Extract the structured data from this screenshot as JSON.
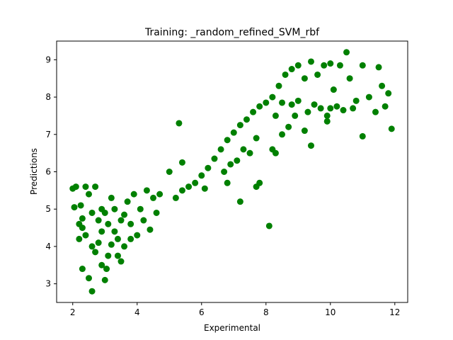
{
  "chart_data": {
    "type": "scatter",
    "title": "Training: _random_refined_SVM_rbf",
    "xlabel": "Experimental",
    "ylabel": "Predictions",
    "xlim": [
      1.5,
      12.4
    ],
    "ylim": [
      2.5,
      9.5
    ],
    "xticks": [
      2,
      4,
      6,
      8,
      10,
      12
    ],
    "yticks": [
      3,
      4,
      5,
      6,
      7,
      8,
      9
    ],
    "grid": false,
    "color": "#008000",
    "series": [
      {
        "values": [
          [
            2.0,
            5.55
          ],
          [
            2.05,
            5.05
          ],
          [
            2.1,
            5.6
          ],
          [
            2.2,
            4.6
          ],
          [
            2.2,
            4.2
          ],
          [
            2.3,
            3.4
          ],
          [
            2.25,
            5.1
          ],
          [
            2.3,
            4.75
          ],
          [
            2.4,
            4.3
          ],
          [
            2.5,
            3.15
          ],
          [
            2.6,
            2.8
          ],
          [
            2.6,
            4.0
          ],
          [
            2.7,
            3.85
          ],
          [
            2.8,
            4.1
          ],
          [
            2.9,
            3.5
          ],
          [
            3.0,
            3.1
          ],
          [
            3.05,
            3.4
          ],
          [
            3.1,
            3.75
          ],
          [
            3.2,
            4.05
          ],
          [
            3.4,
            3.75
          ],
          [
            3.3,
            4.4
          ],
          [
            3.5,
            3.6
          ],
          [
            3.6,
            4.0
          ],
          [
            3.8,
            4.2
          ],
          [
            4.0,
            4.3
          ],
          [
            2.5,
            5.4
          ],
          [
            2.4,
            5.6
          ],
          [
            2.7,
            5.6
          ],
          [
            2.9,
            5.0
          ],
          [
            3.0,
            4.9
          ],
          [
            3.2,
            5.3
          ],
          [
            3.3,
            5.0
          ],
          [
            3.5,
            4.7
          ],
          [
            3.7,
            5.2
          ],
          [
            3.9,
            5.4
          ],
          [
            4.1,
            5.0
          ],
          [
            4.3,
            5.5
          ],
          [
            4.5,
            5.3
          ],
          [
            4.6,
            4.9
          ],
          [
            4.7,
            5.4
          ],
          [
            2.3,
            4.5
          ],
          [
            2.8,
            4.7
          ],
          [
            3.1,
            4.6
          ],
          [
            3.4,
            4.2
          ],
          [
            3.6,
            4.85
          ],
          [
            3.8,
            4.6
          ],
          [
            4.2,
            4.7
          ],
          [
            4.4,
            4.45
          ],
          [
            2.6,
            4.9
          ],
          [
            2.9,
            4.4
          ],
          [
            5.3,
            7.3
          ],
          [
            5.2,
            5.3
          ],
          [
            5.4,
            5.5
          ],
          [
            5.6,
            5.6
          ],
          [
            5.8,
            5.7
          ],
          [
            6.0,
            5.9
          ],
          [
            6.2,
            6.1
          ],
          [
            6.4,
            6.35
          ],
          [
            6.6,
            6.6
          ],
          [
            6.8,
            6.85
          ],
          [
            7.0,
            7.05
          ],
          [
            7.2,
            7.25
          ],
          [
            7.4,
            7.4
          ],
          [
            7.6,
            7.6
          ],
          [
            7.8,
            7.75
          ],
          [
            8.0,
            7.85
          ],
          [
            5.0,
            6.0
          ],
          [
            5.4,
            6.25
          ],
          [
            6.1,
            5.55
          ],
          [
            6.8,
            5.7
          ],
          [
            6.7,
            6.0
          ],
          [
            6.9,
            6.2
          ],
          [
            7.1,
            6.3
          ],
          [
            7.2,
            5.2
          ],
          [
            7.3,
            6.6
          ],
          [
            7.5,
            6.5
          ],
          [
            7.7,
            5.6
          ],
          [
            7.8,
            5.7
          ],
          [
            7.7,
            6.9
          ],
          [
            8.1,
            4.55
          ],
          [
            8.2,
            6.6
          ],
          [
            8.3,
            6.5
          ],
          [
            8.5,
            7.0
          ],
          [
            8.7,
            7.2
          ],
          [
            8.9,
            7.5
          ],
          [
            9.2,
            7.1
          ],
          [
            9.4,
            6.7
          ],
          [
            11.0,
            6.95
          ],
          [
            11.9,
            7.15
          ],
          [
            8.2,
            8.0
          ],
          [
            8.4,
            8.3
          ],
          [
            8.6,
            8.6
          ],
          [
            8.8,
            8.75
          ],
          [
            9.0,
            8.85
          ],
          [
            9.2,
            8.5
          ],
          [
            9.4,
            8.95
          ],
          [
            9.6,
            8.6
          ],
          [
            9.8,
            8.85
          ],
          [
            10.0,
            8.9
          ],
          [
            10.3,
            8.85
          ],
          [
            10.5,
            9.2
          ],
          [
            10.6,
            8.5
          ],
          [
            10.8,
            7.9
          ],
          [
            11.0,
            8.85
          ],
          [
            11.2,
            8.0
          ],
          [
            11.5,
            8.8
          ],
          [
            11.6,
            8.3
          ],
          [
            11.8,
            8.1
          ],
          [
            11.7,
            7.75
          ],
          [
            11.4,
            7.6
          ],
          [
            10.0,
            7.7
          ],
          [
            10.2,
            7.75
          ],
          [
            10.4,
            7.65
          ],
          [
            10.7,
            7.7
          ],
          [
            9.5,
            7.8
          ],
          [
            9.7,
            7.7
          ],
          [
            9.0,
            7.9
          ],
          [
            8.8,
            7.8
          ],
          [
            8.5,
            7.85
          ],
          [
            8.3,
            7.5
          ],
          [
            9.9,
            7.5
          ],
          [
            9.9,
            7.35
          ],
          [
            10.1,
            8.2
          ],
          [
            9.3,
            7.6
          ]
        ]
      }
    ]
  }
}
